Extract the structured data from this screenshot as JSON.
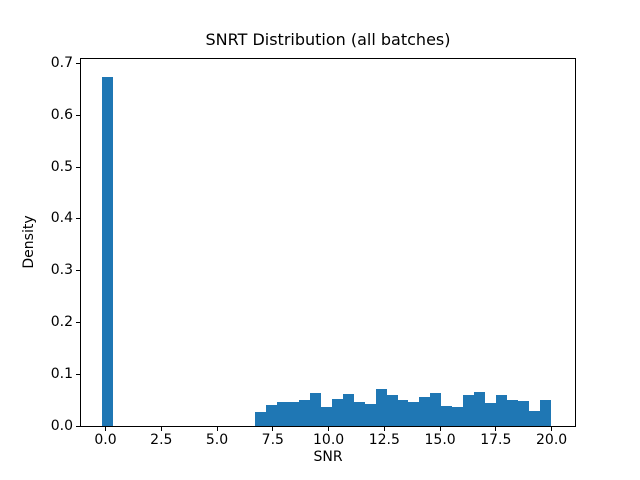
{
  "figure": {
    "title": "SNRT Distribution (all batches)",
    "xlabel": "SNR",
    "ylabel": "Density"
  },
  "chart_data": {
    "type": "bar",
    "subtype": "histogram",
    "title": "SNRT Distribution (all batches)",
    "xlabel": "SNR",
    "ylabel": "Density",
    "bar_color": "#1f77b4",
    "background_color": "#ffffff",
    "grid": false,
    "legend": null,
    "xlim": [
      -1.1,
      21.05
    ],
    "ylim": [
      0,
      0.70875
    ],
    "x_ticks": [
      {
        "v": 0.0,
        "label": "0.0"
      },
      {
        "v": 2.5,
        "label": "2.5"
      },
      {
        "v": 5.0,
        "label": "5.0"
      },
      {
        "v": 7.5,
        "label": "7.5"
      },
      {
        "v": 10.0,
        "label": "10.0"
      },
      {
        "v": 12.5,
        "label": "12.5"
      },
      {
        "v": 15.0,
        "label": "15.0"
      },
      {
        "v": 17.5,
        "label": "17.5"
      },
      {
        "v": 20.0,
        "label": "20.0"
      }
    ],
    "y_ticks": [
      {
        "v": 0.0,
        "label": "0.0"
      },
      {
        "v": 0.1,
        "label": "0.1"
      },
      {
        "v": 0.2,
        "label": "0.2"
      },
      {
        "v": 0.3,
        "label": "0.3"
      },
      {
        "v": 0.4,
        "label": "0.4"
      },
      {
        "v": 0.5,
        "label": "0.5"
      },
      {
        "v": 0.6,
        "label": "0.6"
      },
      {
        "v": 0.7,
        "label": "0.7"
      }
    ],
    "bins": [
      {
        "x0": -0.15,
        "x1": 0.35,
        "d": 0.675
      },
      {
        "x0": 6.68,
        "x1": 7.173,
        "d": 0.027
      },
      {
        "x0": 7.173,
        "x1": 7.666,
        "d": 0.041
      },
      {
        "x0": 7.666,
        "x1": 8.159,
        "d": 0.047
      },
      {
        "x0": 8.159,
        "x1": 8.652,
        "d": 0.047
      },
      {
        "x0": 8.652,
        "x1": 9.145,
        "d": 0.05
      },
      {
        "x0": 9.145,
        "x1": 9.638,
        "d": 0.064
      },
      {
        "x0": 9.638,
        "x1": 10.131,
        "d": 0.037
      },
      {
        "x0": 10.131,
        "x1": 10.624,
        "d": 0.052
      },
      {
        "x0": 10.624,
        "x1": 11.117,
        "d": 0.062
      },
      {
        "x0": 11.117,
        "x1": 11.61,
        "d": 0.047
      },
      {
        "x0": 11.61,
        "x1": 12.103,
        "d": 0.043
      },
      {
        "x0": 12.103,
        "x1": 12.596,
        "d": 0.072
      },
      {
        "x0": 12.596,
        "x1": 13.089,
        "d": 0.059
      },
      {
        "x0": 13.089,
        "x1": 13.582,
        "d": 0.051
      },
      {
        "x0": 13.582,
        "x1": 14.075,
        "d": 0.047
      },
      {
        "x0": 14.075,
        "x1": 14.568,
        "d": 0.056
      },
      {
        "x0": 14.568,
        "x1": 15.061,
        "d": 0.063
      },
      {
        "x0": 15.061,
        "x1": 15.554,
        "d": 0.038
      },
      {
        "x0": 15.554,
        "x1": 16.047,
        "d": 0.036
      },
      {
        "x0": 16.047,
        "x1": 16.54,
        "d": 0.059
      },
      {
        "x0": 16.54,
        "x1": 17.033,
        "d": 0.065
      },
      {
        "x0": 17.033,
        "x1": 17.526,
        "d": 0.044
      },
      {
        "x0": 17.526,
        "x1": 18.019,
        "d": 0.06
      },
      {
        "x0": 18.019,
        "x1": 18.512,
        "d": 0.05
      },
      {
        "x0": 18.512,
        "x1": 19.005,
        "d": 0.048
      },
      {
        "x0": 19.005,
        "x1": 19.498,
        "d": 0.03
      },
      {
        "x0": 19.498,
        "x1": 19.991,
        "d": 0.051
      }
    ]
  }
}
